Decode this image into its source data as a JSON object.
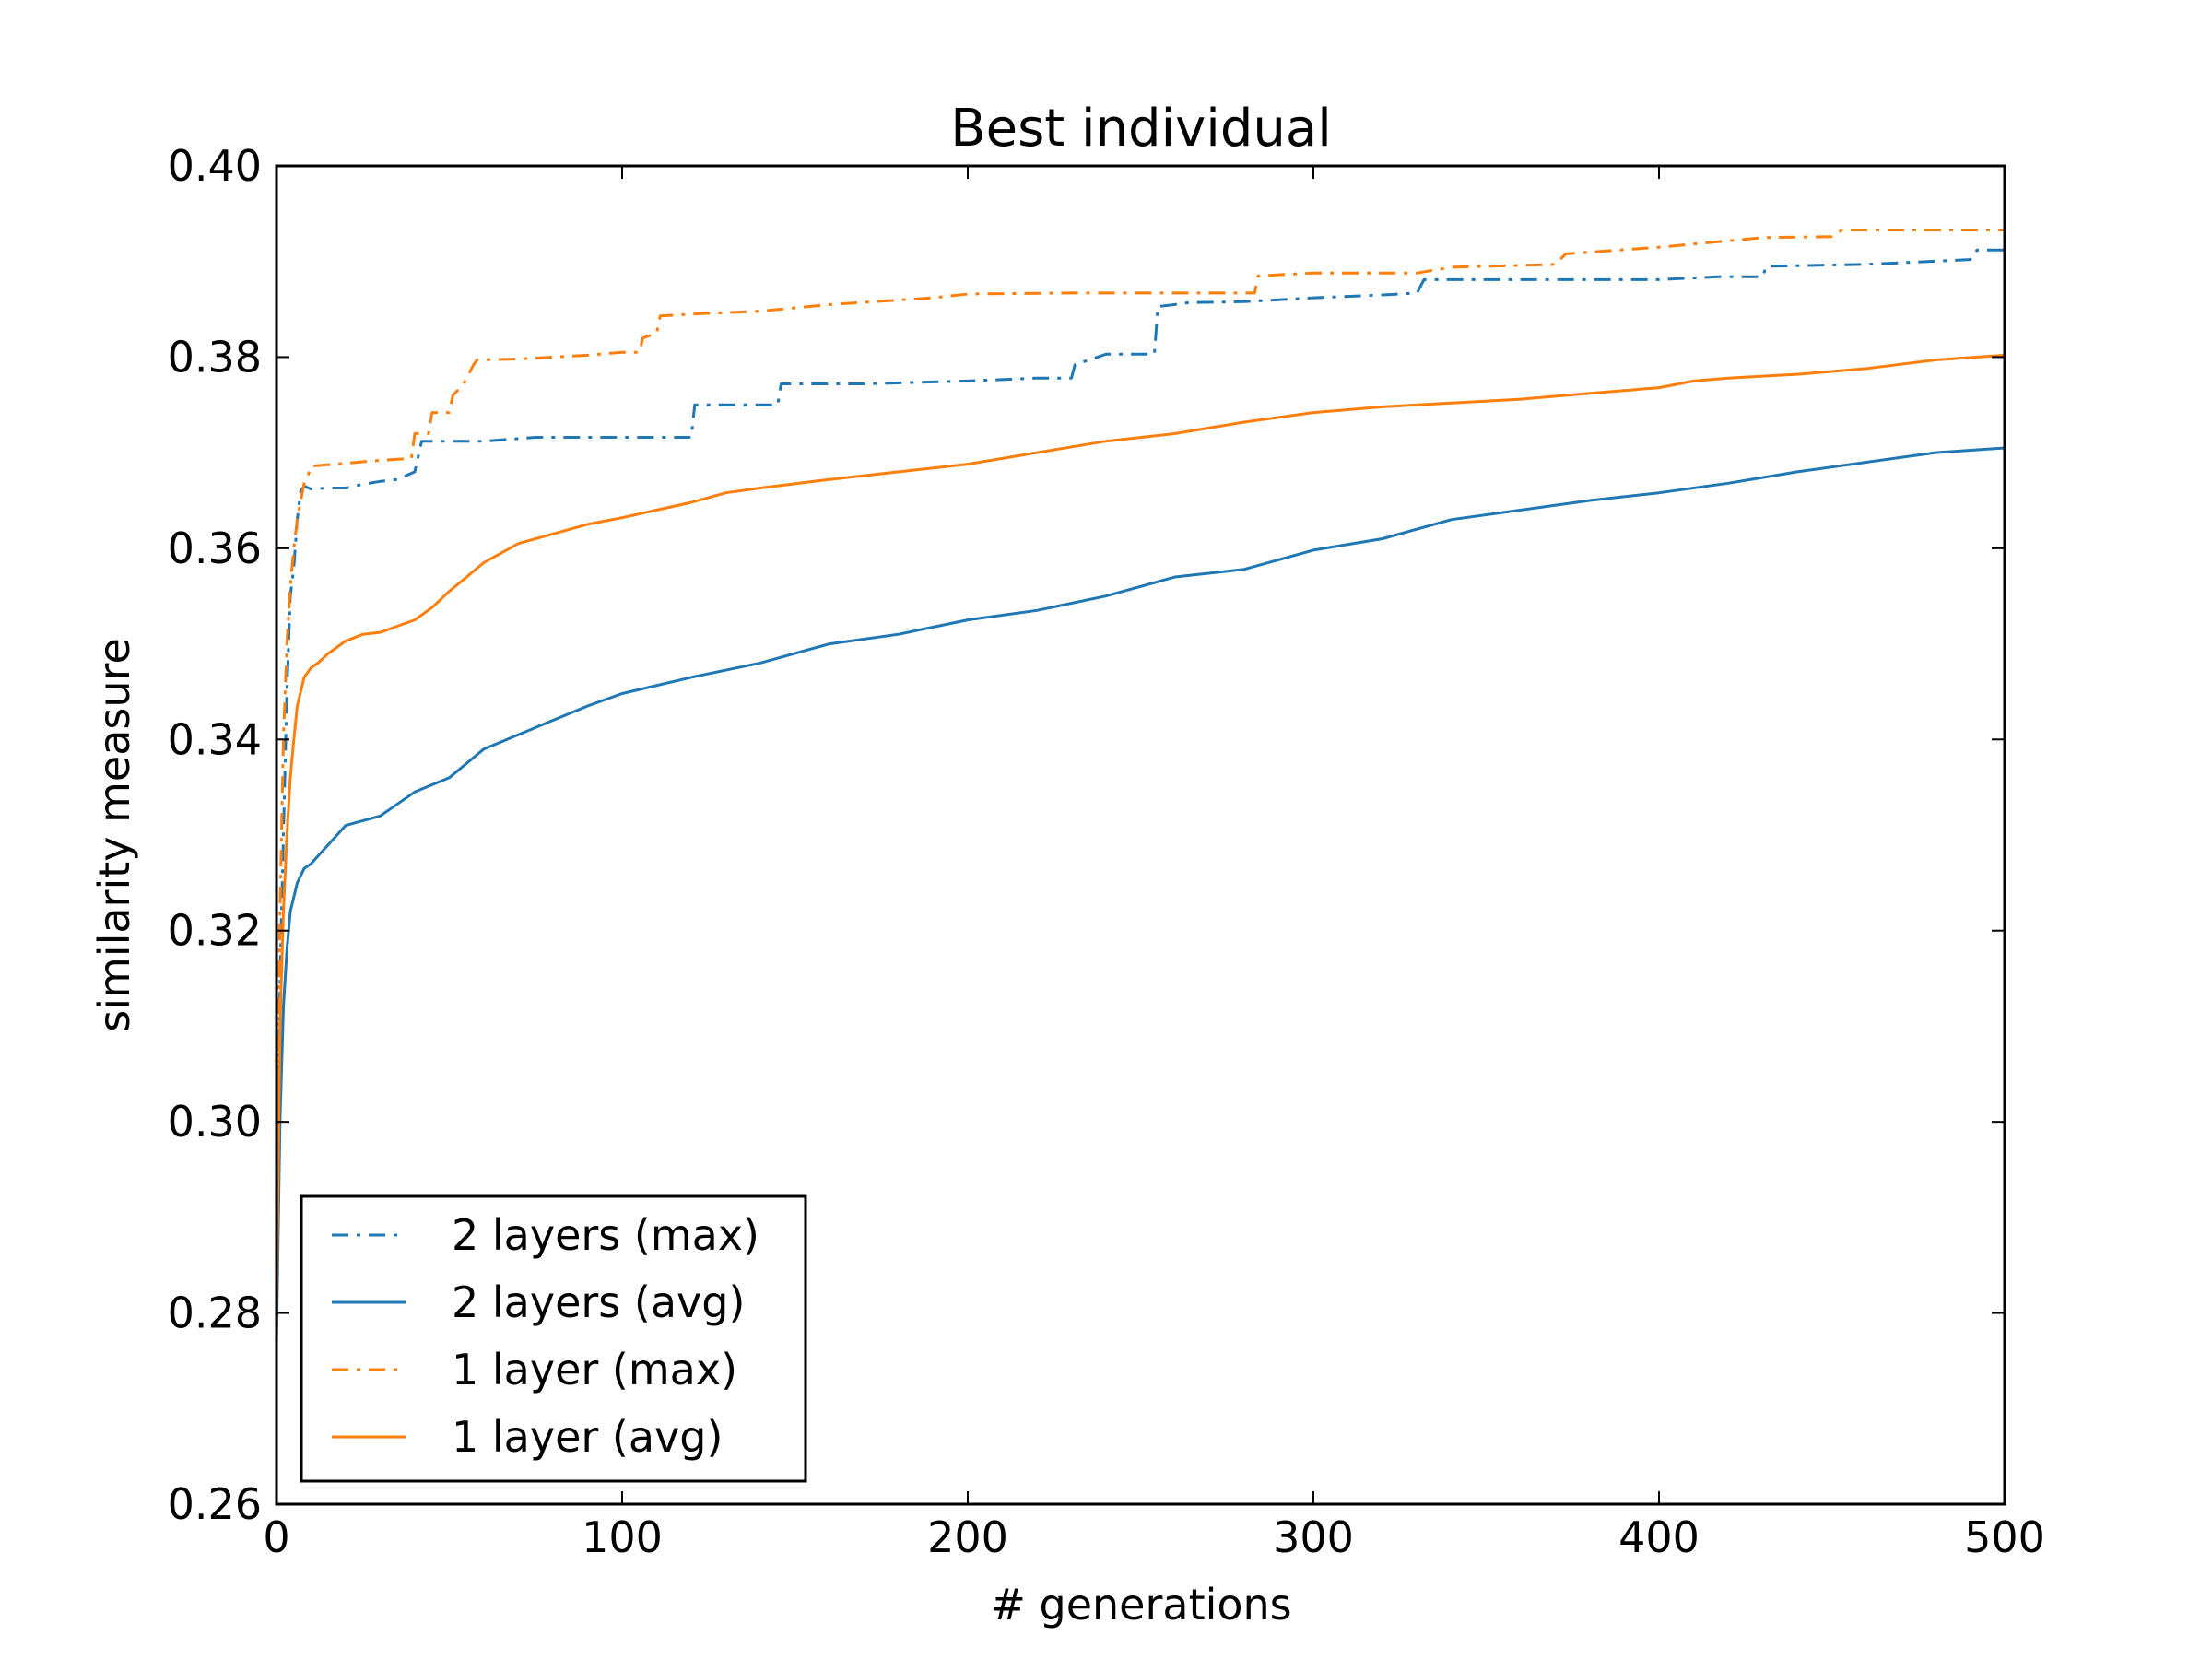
{
  "chart_data": {
    "type": "line",
    "title": "Best individual",
    "xlabel": "# generations",
    "ylabel": "similarity measure",
    "xlim": [
      0,
      500
    ],
    "ylim": [
      0.26,
      0.4
    ],
    "xticks": [
      0,
      100,
      200,
      300,
      400,
      500
    ],
    "xtick_labels": [
      "0",
      "100",
      "200",
      "300",
      "400",
      "500"
    ],
    "yticks": [
      0.26,
      0.28,
      0.3,
      0.32,
      0.34,
      0.36,
      0.38,
      0.4
    ],
    "ytick_labels": [
      "0.26",
      "0.28",
      "0.30",
      "0.32",
      "0.34",
      "0.36",
      "0.38",
      "0.40"
    ],
    "grid": false,
    "legend_position": "lower-left",
    "series": [
      {
        "name": "2 layers (max)",
        "color": "#1f77b4",
        "style": "dashdot",
        "x": [
          0,
          1,
          2,
          3,
          4,
          5,
          6,
          7,
          8,
          10,
          15,
          20,
          25,
          30,
          35,
          40,
          42,
          50,
          60,
          75,
          90,
          110,
          120,
          121,
          130,
          145,
          146,
          170,
          200,
          220,
          230,
          231,
          240,
          254,
          255,
          260,
          264,
          280,
          300,
          320,
          330,
          332,
          360,
          400,
          417,
          430,
          431,
          460,
          490,
          492,
          500
        ],
        "y": [
          0.281,
          0.315,
          0.33,
          0.345,
          0.355,
          0.358,
          0.363,
          0.366,
          0.3665,
          0.3662,
          0.3663,
          0.3663,
          0.3667,
          0.367,
          0.3672,
          0.368,
          0.3712,
          0.3712,
          0.3712,
          0.3716,
          0.3716,
          0.3716,
          0.3716,
          0.375,
          0.375,
          0.375,
          0.3772,
          0.3772,
          0.3775,
          0.3778,
          0.3778,
          0.3792,
          0.3803,
          0.3803,
          0.3853,
          0.3855,
          0.3857,
          0.3858,
          0.3862,
          0.3865,
          0.3867,
          0.3881,
          0.3881,
          0.3881,
          0.3884,
          0.3884,
          0.3895,
          0.3897,
          0.3902,
          0.3912,
          0.3912
        ]
      },
      {
        "name": "2 layers (avg)",
        "color": "#1f77b4",
        "style": "solid",
        "x": [
          0,
          1,
          2,
          3,
          4,
          6,
          8,
          10,
          15,
          20,
          30,
          40,
          50,
          60,
          70,
          80,
          90,
          100,
          120,
          140,
          160,
          180,
          200,
          220,
          240,
          260,
          280,
          300,
          320,
          340,
          360,
          380,
          400,
          420,
          440,
          460,
          480,
          500
        ],
        "y": [
          0.277,
          0.3,
          0.312,
          0.318,
          0.322,
          0.325,
          0.3265,
          0.327,
          0.329,
          0.331,
          0.332,
          0.3345,
          0.336,
          0.339,
          0.3405,
          0.342,
          0.3435,
          0.3448,
          0.3465,
          0.348,
          0.35,
          0.351,
          0.3525,
          0.3535,
          0.355,
          0.357,
          0.3578,
          0.3598,
          0.361,
          0.363,
          0.364,
          0.365,
          0.3658,
          0.3668,
          0.368,
          0.369,
          0.37,
          0.3705
        ]
      },
      {
        "name": "1 layer (max)",
        "color": "#ff7f0e",
        "style": "dashdot",
        "x": [
          0,
          1,
          2,
          3,
          4,
          5,
          6,
          7,
          8,
          9,
          10,
          20,
          30,
          39,
          40,
          44,
          45,
          50,
          51,
          54,
          57,
          58,
          70,
          90,
          100,
          105,
          106,
          110,
          111,
          120,
          140,
          160,
          190,
          200,
          230,
          260,
          280,
          283,
          284,
          300,
          330,
          340,
          360,
          370,
          373,
          400,
          430,
          450,
          453,
          500
        ],
        "y": [
          0.292,
          0.322,
          0.34,
          0.35,
          0.356,
          0.36,
          0.363,
          0.365,
          0.3668,
          0.3675,
          0.3686,
          0.3689,
          0.3692,
          0.3694,
          0.372,
          0.372,
          0.3742,
          0.3742,
          0.376,
          0.3771,
          0.3792,
          0.3797,
          0.3798,
          0.3802,
          0.3805,
          0.3805,
          0.382,
          0.3825,
          0.3843,
          0.3845,
          0.3848,
          0.3855,
          0.3862,
          0.3866,
          0.3867,
          0.3867,
          0.3867,
          0.3867,
          0.3885,
          0.3888,
          0.3888,
          0.3894,
          0.3896,
          0.3897,
          0.3908,
          0.3915,
          0.3925,
          0.3926,
          0.3933,
          0.3933
        ]
      },
      {
        "name": "1 layer (avg)",
        "color": "#ff7f0e",
        "style": "solid",
        "x": [
          0,
          1,
          2,
          3,
          4,
          5,
          6,
          8,
          10,
          12,
          15,
          20,
          25,
          30,
          40,
          45,
          50,
          55,
          60,
          70,
          80,
          90,
          100,
          110,
          120,
          130,
          140,
          160,
          180,
          200,
          220,
          240,
          260,
          280,
          300,
          320,
          340,
          360,
          380,
          400,
          410,
          420,
          440,
          460,
          480,
          500
        ],
        "y": [
          0.28,
          0.31,
          0.322,
          0.33,
          0.336,
          0.34,
          0.3435,
          0.3465,
          0.3475,
          0.348,
          0.349,
          0.3503,
          0.351,
          0.3512,
          0.3525,
          0.3538,
          0.3555,
          0.357,
          0.3585,
          0.3605,
          0.3615,
          0.3625,
          0.3632,
          0.364,
          0.3648,
          0.3658,
          0.3663,
          0.3672,
          0.368,
          0.3688,
          0.37,
          0.3712,
          0.372,
          0.3732,
          0.3742,
          0.3748,
          0.3752,
          0.3756,
          0.3762,
          0.3768,
          0.3775,
          0.3778,
          0.3782,
          0.3788,
          0.3797,
          0.3802
        ]
      }
    ]
  }
}
